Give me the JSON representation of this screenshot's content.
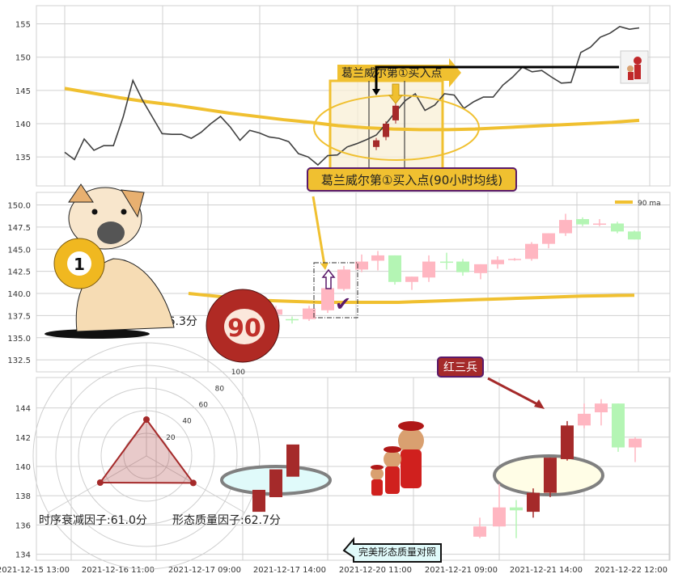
{
  "colors": {
    "ma": "#f0c030",
    "line": "#404040",
    "up": "#ffb6c1",
    "down": "#b4f5b4",
    "highlight": "#a52a2a",
    "label_bg": "#f0c030",
    "label_border": "#5a1a6a"
  },
  "chart_data": [
    {
      "type": "line",
      "panel": "top",
      "ylim": [
        131,
        158
      ],
      "yticks": [
        135,
        140,
        145,
        150,
        155
      ],
      "grid": true,
      "series": [
        {
          "values": [
            135.7,
            134.6,
            137.7,
            136,
            136.7,
            136.7,
            141,
            146.5,
            143.5,
            141,
            138.5,
            138.4,
            138.4,
            137.8,
            138.7,
            140,
            141.1,
            139.5,
            137.5,
            139,
            138.6,
            138,
            137.8,
            137.3,
            135.5,
            135,
            133.8,
            135.2,
            135.3,
            136.5,
            137,
            137.6,
            138.3,
            140,
            141.8,
            143.5,
            144.5,
            142,
            142.8,
            144.5,
            144.3,
            142.3,
            143.3,
            144,
            144,
            145.8,
            147,
            148.5,
            147.8,
            148,
            147,
            146.1,
            146.2,
            150.7,
            151.5,
            153,
            153.6,
            154.6,
            154.2,
            154.4
          ]
        },
        {
          "name": "90 ma",
          "values": [
            145.3,
            144.6,
            143.9,
            143.3,
            142.8,
            142.2,
            141.6,
            141.1,
            140.6,
            140.2,
            139.7,
            139.4,
            139.2,
            139.1,
            139.1,
            139.2,
            139.4,
            139.6,
            139.8,
            140,
            140.2,
            140.5
          ]
        }
      ]
    },
    {
      "type": "candlestick",
      "panel": "middle",
      "ylim": [
        131,
        151.5
      ],
      "yticks": [
        "132.5",
        "135.0",
        "137.5",
        "140.0",
        "142.5",
        "145.0",
        "147.5",
        "150.0"
      ],
      "legend": "top-right",
      "grid": true,
      "candles": [
        [
          137.6,
          138.2,
          138.6,
          137.2
        ],
        [
          137.1,
          137.0,
          137.4,
          136.6
        ],
        [
          137.1,
          138.3,
          138.6,
          136.9
        ],
        [
          138.1,
          140.6,
          141,
          137.8
        ],
        [
          140.5,
          142.7,
          143.1,
          140.3
        ],
        [
          142.7,
          143.6,
          144.4,
          142.4
        ],
        [
          143.7,
          144.3,
          144.8,
          142.6
        ],
        [
          144.3,
          141.3,
          144.3,
          141
        ],
        [
          141.3,
          141.9,
          141.9,
          140.4
        ],
        [
          141.8,
          143.6,
          144.3,
          141.3
        ],
        [
          143.6,
          143.5,
          144.6,
          142.7
        ],
        [
          143.6,
          142.4,
          143.9,
          142
        ],
        [
          142.3,
          143.3,
          143.3,
          141.6
        ],
        [
          143.3,
          143.8,
          144.2,
          142.8
        ],
        [
          143.8,
          143.9,
          144.0,
          143.7
        ],
        [
          143.9,
          145.6,
          145.8,
          143.7
        ],
        [
          145.6,
          146.8,
          146.8,
          145.1
        ],
        [
          146.8,
          148.3,
          149.0,
          146.5
        ],
        [
          148.4,
          147.8,
          148.6,
          147.6
        ],
        [
          147.9,
          147.9,
          148.4,
          147.6
        ],
        [
          147.9,
          147,
          148.1,
          146.8
        ],
        [
          147,
          146.1,
          147.1,
          146.1
        ]
      ],
      "ma_values": [
        140,
        139.7,
        139.4,
        139.2,
        139.1,
        139.0,
        139.0,
        139.0,
        139.0,
        139.1,
        139.2,
        139.3,
        139.4,
        139.5,
        139.6,
        139.7,
        139.75,
        139.8
      ]
    },
    {
      "type": "candlestick",
      "panel": "bottom",
      "ylim": [
        133.6,
        146.2
      ],
      "yticks": [
        "134",
        "136",
        "138",
        "140",
        "142",
        "144"
      ],
      "xticks": [
        "2021-12-15 13:00",
        "2021-12-16 11:00",
        "2021-12-17 09:00",
        "2021-12-17 14:00",
        "2021-12-20 11:00",
        "2021-12-21 09:00",
        "2021-12-21 14:00",
        "2021-12-22 12:00"
      ],
      "reference_candles": [
        [
          136.9,
          138.4,
          138.4,
          136.9
        ],
        [
          137.9,
          139.8,
          139.8,
          137.9
        ],
        [
          139.3,
          141.5,
          141.5,
          139.3
        ]
      ],
      "candles": [
        [
          135.2,
          135.9,
          136.5,
          135.1,
          "up"
        ],
        [
          135.9,
          137.2,
          138.8,
          135.9,
          "up"
        ],
        [
          137.2,
          137.0,
          137.7,
          135.1,
          "down"
        ],
        [
          136.9,
          138.2,
          138.5,
          136.5,
          "hl"
        ],
        [
          138.2,
          140.6,
          140.6,
          137.9,
          "hl"
        ],
        [
          140.5,
          142.8,
          143.1,
          140.4,
          "hl"
        ],
        [
          142.8,
          143.6,
          144.3,
          142.6,
          "up"
        ],
        [
          143.7,
          144.3,
          144.6,
          142.8,
          "up"
        ],
        [
          144.3,
          141.3,
          144.3,
          141.0,
          "down"
        ],
        [
          141.3,
          141.9,
          142.0,
          140.3,
          "up"
        ]
      ]
    },
    {
      "type": "radar",
      "rings": [
        "20",
        "40",
        "60",
        "80",
        "100"
      ],
      "axes": [
        {
          "label": "过激与报复因子:16.3分",
          "value": 16.3
        },
        {
          "label": "形态质量因子:62.7分",
          "value": 62.7
        },
        {
          "label": "时序衰减因子:61.0分",
          "value": 61.0
        }
      ]
    }
  ],
  "annotations": {
    "buy_arrow_label": "葛兰威尔第①买入点",
    "buy_box_label": "葛兰威尔第①买入点(90小时均线)",
    "legend_ma": "90 ma",
    "red_three_soldiers": "红三兵",
    "perfect_pattern": "完美形态质量对照",
    "ball_1": "1",
    "ball_90": "90"
  }
}
